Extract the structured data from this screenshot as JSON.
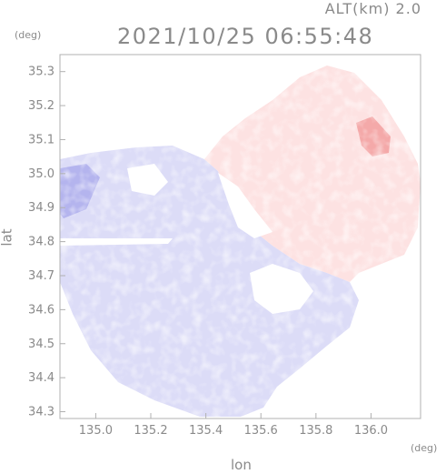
{
  "header": {
    "altitude_label": "ALT(km) 2.0",
    "timestamp": "2021/10/25 06:55:48"
  },
  "axes": {
    "y_unit": "(deg)",
    "x_unit": "(deg)",
    "xlabel": "lon",
    "ylabel": "lat",
    "x_range": [
      134.87,
      136.18
    ],
    "y_range": [
      34.28,
      35.35
    ],
    "x_ticks": [
      "135.0",
      "135.2",
      "135.4",
      "135.6",
      "135.8",
      "136.0"
    ],
    "y_ticks": [
      "34.3",
      "34.4",
      "34.5",
      "34.6",
      "34.7",
      "34.8",
      "34.9",
      "35.0",
      "35.1",
      "35.2",
      "35.3"
    ]
  },
  "map": {
    "radar_center": [
      135.52,
      34.82
    ],
    "colors": {
      "negative": "#dcdcf7",
      "negative_strong": "#b4b4ee",
      "positive": "#fde2e2",
      "positive_strong": "#f4a9a9",
      "no_echo": "#ffffff",
      "frame": "#b0b0b0"
    }
  }
}
